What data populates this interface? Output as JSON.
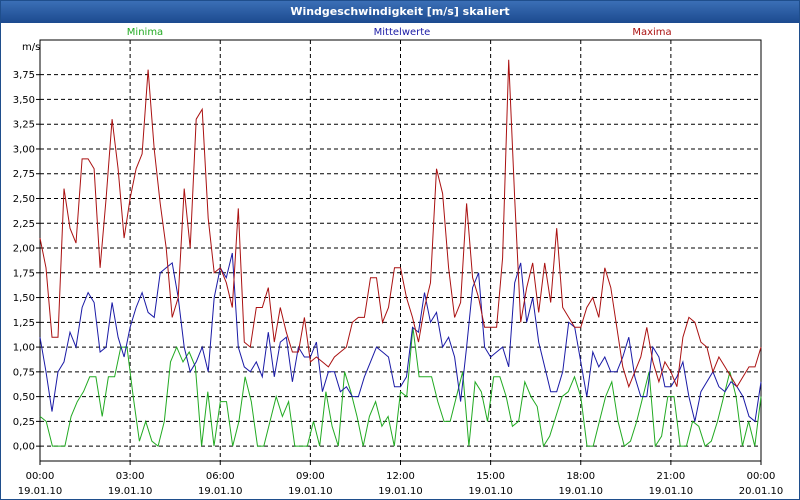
{
  "window": {
    "title": "Windgeschwindigkeit [m/s] skaliert"
  },
  "chart_data": {
    "type": "line",
    "title": "Windgeschwindigkeit [m/s] skaliert",
    "ylabel": "m/s",
    "xlabel": "",
    "ylim": [
      -0.15,
      4.1
    ],
    "xlim": [
      0,
      96
    ],
    "grid": true,
    "legend_position": "top",
    "y_ticks": [
      0,
      0.25,
      0.5,
      0.75,
      1.0,
      1.25,
      1.5,
      1.75,
      2.0,
      2.25,
      2.5,
      2.75,
      3.0,
      3.25,
      3.5,
      3.75
    ],
    "y_tick_labels": [
      "0,00",
      "0,25",
      "0,50",
      "0,75",
      "1,00",
      "1,25",
      "1,50",
      "1,75",
      "2,00",
      "2,25",
      "2,50",
      "2,75",
      "3,00",
      "3,25",
      "3,50",
      "3,75"
    ],
    "x_ticks": [
      0,
      12,
      24,
      36,
      48,
      60,
      72,
      84,
      96
    ],
    "x_tick_times": [
      "00:00",
      "03:00",
      "06:00",
      "09:00",
      "12:00",
      "15:00",
      "18:00",
      "21:00",
      "00:00"
    ],
    "x_tick_dates": [
      "19.01.10",
      "19.01.10",
      "19.01.10",
      "19.01.10",
      "19.01.10",
      "19.01.10",
      "19.01.10",
      "19.01.10",
      "20.01.10"
    ],
    "series": [
      {
        "name": "Minima",
        "color": "#22aa22",
        "values": [
          0.3,
          0.25,
          0.0,
          0.0,
          0.0,
          0.3,
          0.45,
          0.55,
          0.7,
          0.7,
          0.3,
          0.7,
          0.7,
          1.0,
          1.0,
          0.5,
          0.05,
          0.25,
          0.05,
          0.0,
          0.25,
          0.85,
          1.0,
          0.85,
          0.95,
          0.8,
          0.0,
          0.55,
          0.0,
          0.45,
          0.45,
          0.0,
          0.25,
          0.7,
          0.45,
          0.0,
          0.0,
          0.25,
          0.5,
          0.3,
          0.45,
          0.0,
          0.0,
          0.0,
          0.25,
          0.0,
          0.55,
          0.2,
          0.0,
          0.75,
          0.55,
          0.3,
          0.0,
          0.3,
          0.45,
          0.2,
          0.3,
          0.0,
          0.55,
          0.5,
          1.2,
          0.7,
          0.7,
          0.7,
          0.45,
          0.25,
          0.25,
          0.5,
          0.75,
          0.0,
          0.65,
          0.55,
          0.25,
          0.7,
          0.7,
          0.5,
          0.2,
          0.25,
          0.65,
          0.5,
          0.4,
          0.0,
          0.1,
          0.3,
          0.5,
          0.55,
          0.7,
          0.5,
          0.0,
          0.0,
          0.25,
          0.5,
          0.65,
          0.25,
          0.0,
          0.05,
          0.25,
          0.5,
          0.75,
          0.0,
          0.1,
          0.5,
          0.5,
          0.0,
          0.0,
          0.25,
          0.2,
          0.0,
          0.05,
          0.25,
          0.5,
          0.75,
          0.5,
          0.0,
          0.25,
          0.0,
          0.5
        ]
      },
      {
        "name": "Mittelwerte",
        "color": "#1a1aa6",
        "values": [
          1.1,
          0.75,
          0.35,
          0.75,
          0.85,
          1.15,
          1.0,
          1.4,
          1.55,
          1.45,
          0.95,
          1.0,
          1.45,
          1.1,
          0.9,
          1.2,
          1.4,
          1.55,
          1.35,
          1.3,
          1.75,
          1.8,
          1.85,
          1.5,
          1.0,
          0.75,
          0.85,
          1.0,
          0.75,
          1.5,
          1.8,
          1.7,
          1.95,
          1.0,
          0.8,
          0.75,
          0.85,
          0.7,
          1.15,
          0.7,
          1.05,
          1.1,
          0.65,
          1.0,
          0.9,
          0.9,
          1.05,
          0.55,
          0.75,
          0.75,
          0.55,
          0.6,
          0.5,
          0.5,
          0.7,
          0.85,
          1.0,
          0.95,
          0.9,
          0.6,
          0.6,
          0.7,
          1.2,
          1.15,
          1.55,
          1.25,
          1.35,
          1.0,
          1.1,
          0.9,
          0.45,
          1.0,
          1.6,
          1.75,
          1.0,
          0.9,
          0.95,
          1.0,
          0.8,
          1.65,
          1.85,
          1.25,
          1.5,
          1.05,
          0.8,
          0.55,
          0.55,
          0.75,
          1.25,
          1.2,
          0.85,
          0.5,
          0.95,
          0.8,
          0.9,
          0.75,
          0.75,
          0.9,
          1.1,
          0.7,
          0.5,
          0.5,
          1.0,
          0.9,
          0.6,
          0.6,
          0.7,
          0.85,
          0.5,
          0.25,
          0.55,
          0.65,
          0.75,
          0.6,
          0.55,
          0.65,
          0.6,
          0.5,
          0.3,
          0.25,
          0.65
        ]
      },
      {
        "name": "Maxima",
        "color": "#aa1111",
        "values": [
          2.1,
          1.8,
          1.1,
          1.1,
          2.6,
          2.2,
          2.05,
          2.9,
          2.9,
          2.8,
          1.8,
          2.5,
          3.3,
          2.8,
          2.1,
          2.5,
          2.8,
          2.95,
          3.8,
          3.0,
          2.45,
          2.0,
          1.3,
          1.5,
          2.6,
          2.0,
          3.3,
          3.4,
          2.3,
          1.75,
          1.8,
          1.65,
          1.4,
          2.4,
          1.05,
          1.0,
          1.4,
          1.4,
          1.6,
          1.05,
          1.4,
          1.15,
          0.95,
          0.95,
          1.3,
          0.85,
          0.9,
          0.85,
          0.8,
          0.9,
          0.95,
          1.0,
          1.25,
          1.3,
          1.3,
          1.7,
          1.7,
          1.25,
          1.4,
          1.8,
          1.8,
          1.5,
          1.3,
          1.05,
          1.4,
          1.65,
          2.8,
          2.55,
          1.8,
          1.3,
          1.45,
          2.45,
          1.7,
          1.5,
          1.2,
          1.2,
          1.2,
          1.9,
          3.9,
          2.5,
          1.25,
          1.6,
          1.85,
          1.35,
          1.85,
          1.45,
          2.2,
          1.4,
          1.3,
          1.2,
          1.2,
          1.4,
          1.5,
          1.3,
          1.8,
          1.6,
          1.2,
          0.8,
          0.6,
          0.75,
          0.9,
          1.2,
          0.85,
          0.65,
          0.85,
          0.75,
          0.6,
          1.1,
          1.3,
          1.25,
          1.05,
          1.0,
          0.75,
          0.9,
          0.8,
          0.7,
          0.6,
          0.7,
          0.8,
          0.8,
          1.0
        ]
      }
    ]
  }
}
